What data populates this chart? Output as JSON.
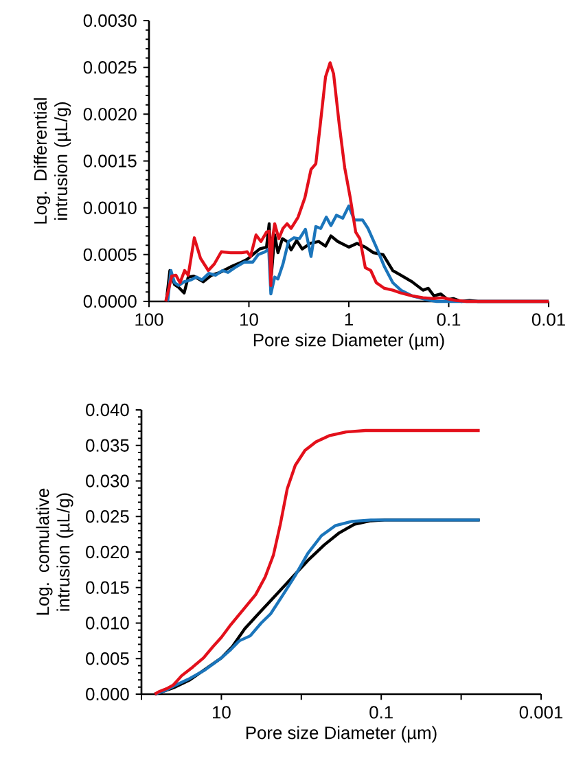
{
  "chart_data": [
    {
      "type": "line",
      "xlabel": "Pore size Diameter (µm)",
      "ylabel": "Log. Differential intrusion (µL/g)",
      "log": "x",
      "xlim": [
        100,
        0.01
      ],
      "ylim": [
        0,
        0.003
      ],
      "xticks": [
        100,
        10,
        1,
        0.1,
        0.01
      ],
      "yticks": [
        {
          "value": 0,
          "label": "0.0000"
        },
        {
          "value": 0.0005,
          "label": "0.0005"
        },
        {
          "value": 0.001,
          "label": "0.0010"
        },
        {
          "value": 0.0015,
          "label": "0.0015"
        },
        {
          "value": 0.002,
          "label": "0.0020"
        },
        {
          "value": 0.0025,
          "label": "0.0025"
        },
        {
          "value": 0.003,
          "label": "0.0030"
        }
      ],
      "series": [
        {
          "color": "#000000",
          "x": [
            67.1,
            61.8,
            55.5,
            50.5,
            44.5,
            40.5,
            35.7,
            28.6,
            23.7,
            19.5,
            15.2,
            11.8,
            10.4,
            9.15,
            7.81,
            6.67,
            6.27,
            5.96,
            5.52,
            5.12,
            4.62,
            4.15,
            3.78,
            3.33,
            2.93,
            2.43,
            2.0,
            1.71,
            1.51,
            1.29,
            1.0,
            0.828,
            0.684,
            0.566,
            0.454,
            0.363,
            0.301,
            0.233,
            0.181,
            0.16,
            0.141,
            0.12,
            0.103,
            0.09,
            0.075,
            0.062,
            0.051,
            0.01
          ],
          "values": [
            0,
            0.00033,
            0.00018,
            0.00015,
            9e-05,
            0.00026,
            0.00027,
            0.00021,
            0.00028,
            0.00031,
            0.00037,
            0.00042,
            0.00045,
            0.0005,
            0.00056,
            0.00058,
            0.00083,
            0.00028,
            0.00071,
            0.00052,
            0.00067,
            0.00064,
            0.00055,
            0.00065,
            0.00056,
            0.00062,
            0.00064,
            0.00059,
            0.0007,
            0.00064,
            0.00058,
            0.00062,
            0.00058,
            0.00052,
            0.0005,
            0.00033,
            0.00028,
            0.00021,
            0.00012,
            0.00014,
            6e-05,
            8e-05,
            2e-05,
            3e-05,
            0,
            1e-05,
            0,
            0
          ]
        },
        {
          "color": "#1b75bb",
          "x": [
            65.0,
            60.3,
            55.5,
            50.5,
            44.5,
            38.0,
            33.5,
            29.5,
            25.2,
            21.5,
            18.4,
            16.2,
            13.4,
            11.1,
            9.15,
            8.07,
            6.88,
            6.34,
            6.03,
            5.52,
            5.12,
            4.56,
            4.02,
            3.54,
            3.12,
            2.72,
            2.39,
            2.14,
            1.91,
            1.68,
            1.51,
            1.33,
            1.15,
            1.0,
            0.881,
            0.729,
            0.643,
            0.531,
            0.44,
            0.363,
            0.301,
            0.233,
            0.17,
            0.132,
            0.01
          ],
          "values": [
            0,
            0.00033,
            0.0002,
            0.00017,
            0.00021,
            0.00023,
            0.00026,
            0.00023,
            0.0003,
            0.00028,
            0.00033,
            0.00031,
            0.00037,
            0.00042,
            0.00042,
            0.0005,
            0.00053,
            0.00056,
            8e-05,
            0.00026,
            0.00024,
            0.0004,
            0.00064,
            0.00068,
            0.00067,
            0.00077,
            0.00048,
            0.0008,
            0.00078,
            0.0009,
            0.00081,
            0.00092,
            0.00089,
            0.00102,
            0.00087,
            0.00087,
            0.00078,
            0.00058,
            0.00037,
            0.0002,
            0.00012,
            6e-05,
            2e-05,
            0,
            0
          ]
        },
        {
          "color": "#e3101b",
          "x": [
            68.0,
            59.2,
            53.8,
            48.9,
            44.0,
            40.5,
            35.2,
            30.5,
            25.5,
            22.2,
            18.9,
            15.2,
            11.8,
            10.4,
            9.63,
            8.49,
            7.57,
            6.67,
            6.27,
            6.03,
            5.8,
            5.52,
            5.02,
            4.56,
            4.15,
            3.78,
            3.22,
            2.75,
            2.39,
            2.14,
            1.94,
            1.71,
            1.54,
            1.42,
            1.25,
            1.1,
            0.969,
            0.853,
            0.776,
            0.684,
            0.603,
            0.531,
            0.44,
            0.363,
            0.301,
            0.233,
            0.181,
            0.141,
            0.116,
            0.085,
            0.066,
            0.01
          ],
          "values": [
            0,
            0.00027,
            0.00028,
            0.0002,
            0.00033,
            0.00028,
            0.00068,
            0.00046,
            0.00033,
            0.0004,
            0.00053,
            0.00052,
            0.00052,
            0.00053,
            0.00048,
            0.00071,
            0.00064,
            0.00074,
            0.00075,
            0.00017,
            0.00067,
            0.00083,
            0.00067,
            0.00078,
            0.00083,
            0.00078,
            0.0009,
            0.00111,
            0.00141,
            0.00147,
            0.00187,
            0.0024,
            0.00255,
            0.00243,
            0.0019,
            0.00143,
            0.00111,
            0.00074,
            0.00067,
            0.00036,
            0.00033,
            0.0002,
            0.00014,
            0.00012,
            9e-05,
            6e-05,
            4e-05,
            3e-05,
            4e-05,
            1e-05,
            0,
            0
          ]
        }
      ]
    },
    {
      "type": "line",
      "xlabel": "Pore size Diameter (µm)",
      "ylabel": "Log. comulative intrusion (µL/g)",
      "log": "x",
      "xlim": [
        100,
        0.001
      ],
      "ylim": [
        0,
        0.04
      ],
      "xticks": [
        {
          "value": 100,
          "label": null
        },
        10,
        {
          "value": 1,
          "label": null
        },
        0.1,
        {
          "value": 0.01,
          "label": null
        },
        0.001
      ],
      "yticks": [
        {
          "value": 0,
          "label": "0.000"
        },
        {
          "value": 0.005,
          "label": "0.005"
        },
        {
          "value": 0.01,
          "label": "0.010"
        },
        {
          "value": 0.015,
          "label": "0.015"
        },
        {
          "value": 0.02,
          "label": "0.020"
        },
        {
          "value": 0.025,
          "label": "0.025"
        },
        {
          "value": 0.03,
          "label": "0.030"
        },
        {
          "value": 0.035,
          "label": "0.035"
        },
        {
          "value": 0.04,
          "label": "0.040"
        }
      ],
      "series": [
        {
          "color": "#000000",
          "x": [
            68.2,
            50.5,
            39.8,
            24.8,
            15.5,
            10,
            7.29,
            5.1,
            3.44,
            2.14,
            1.33,
            0.83,
            0.516,
            0.335,
            0.217,
            0.135,
            0.091,
            0.00586
          ],
          "values": [
            0,
            0.0005,
            0.0009,
            0.002,
            0.0036,
            0.0051,
            0.0067,
            0.0092,
            0.0113,
            0.0138,
            0.0163,
            0.0188,
            0.021,
            0.0227,
            0.0239,
            0.0244,
            0.0245,
            0.0245
          ]
        },
        {
          "color": "#1b75bb",
          "x": [
            68.2,
            50.5,
            36.8,
            24.8,
            16.1,
            10,
            7.59,
            5.98,
            4.36,
            3.18,
            2.42,
            1.69,
            1.19,
            0.83,
            0.56,
            0.377,
            0.235,
            0.135,
            0.00586
          ],
          "values": [
            0,
            0.0005,
            0.0013,
            0.0022,
            0.0034,
            0.0051,
            0.0063,
            0.0075,
            0.0082,
            0.01,
            0.0113,
            0.014,
            0.0167,
            0.0198,
            0.0223,
            0.0237,
            0.0243,
            0.0245,
            0.0245
          ]
        },
        {
          "color": "#e3101b",
          "x": [
            68.2,
            59.2,
            48.5,
            39.8,
            31.4,
            22.9,
            16.7,
            12.7,
            10,
            7.59,
            5.32,
            3.73,
            2.83,
            2.23,
            1.83,
            1.5,
            1.19,
            0.9,
            0.655,
            0.441,
            0.275,
            0.158,
            0.091,
            0.00586
          ],
          "values": [
            0,
            0.00039,
            0.00077,
            0.0013,
            0.0026,
            0.0038,
            0.0051,
            0.0067,
            0.008,
            0.0098,
            0.0119,
            0.014,
            0.0165,
            0.0196,
            0.0239,
            0.0289,
            0.0322,
            0.0343,
            0.0355,
            0.0364,
            0.0369,
            0.0371,
            0.0371,
            0.0371
          ]
        }
      ]
    }
  ]
}
